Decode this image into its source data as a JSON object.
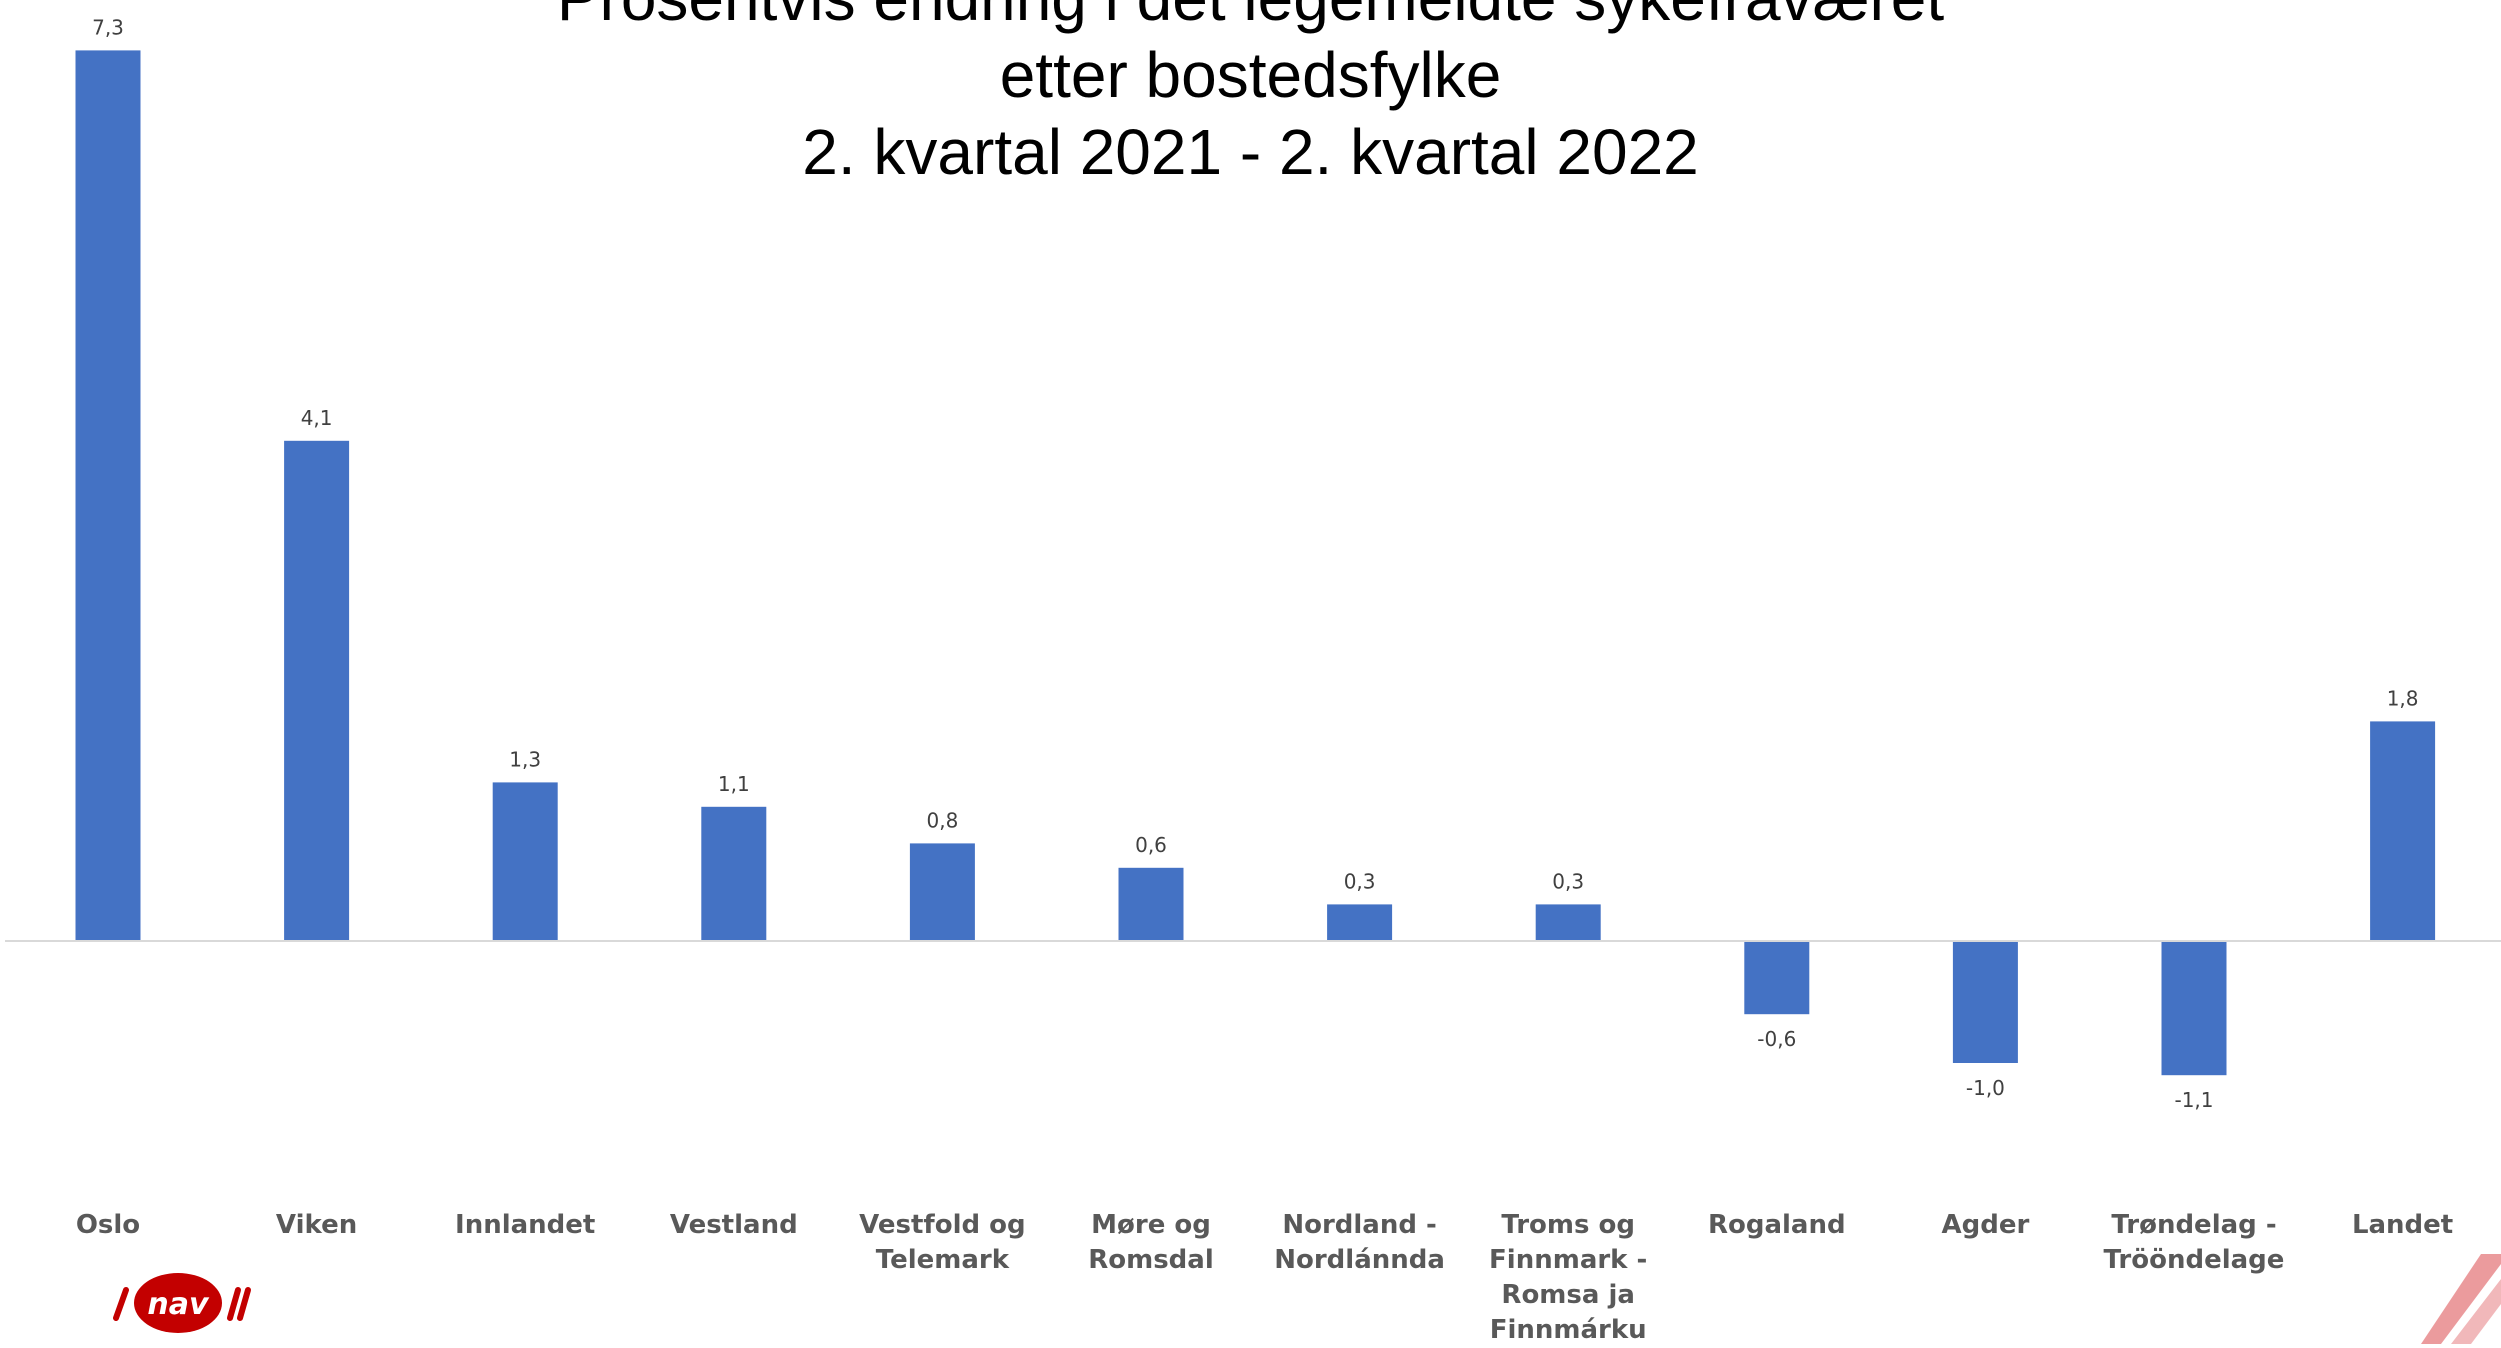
{
  "chart_data": {
    "type": "bar",
    "title_lines": [
      "Prosentvis endring i det legemeldte sykefraværet",
      "etter bostedsfylke",
      "2. kvartal 2021 - 2. kvartal 2022"
    ],
    "categories": [
      [
        "Oslo"
      ],
      [
        "Viken"
      ],
      [
        "Innlandet"
      ],
      [
        "Vestland"
      ],
      [
        "Vestfold og",
        "Telemark"
      ],
      [
        "Møre og",
        "Romsdal"
      ],
      [
        "Nordland -",
        "Nordlánnda"
      ],
      [
        "Troms og",
        "Finnmark -",
        "Romsa ja",
        "Finnmárku"
      ],
      [
        "Rogaland"
      ],
      [
        "Agder"
      ],
      [
        "Trøndelag -",
        "Trööndelage"
      ],
      [
        "Landet"
      ]
    ],
    "values": [
      7.3,
      4.1,
      1.3,
      1.1,
      0.8,
      0.6,
      0.3,
      0.3,
      -0.6,
      -1.0,
      -1.1,
      1.8
    ],
    "value_labels": [
      "7,3",
      "4,1",
      "1,3",
      "1,1",
      "0,8",
      "0,6",
      "0,3",
      "0,3",
      "-0,6",
      "-1,0",
      "-1,1",
      "1,8"
    ],
    "bar_color": "#4472C4",
    "axis_color": "#D9D9D9",
    "ylim": [
      -1.9,
      7.3
    ],
    "grid": false,
    "legend": "none"
  },
  "logo": {
    "text": "nav",
    "color": "#C30000"
  }
}
